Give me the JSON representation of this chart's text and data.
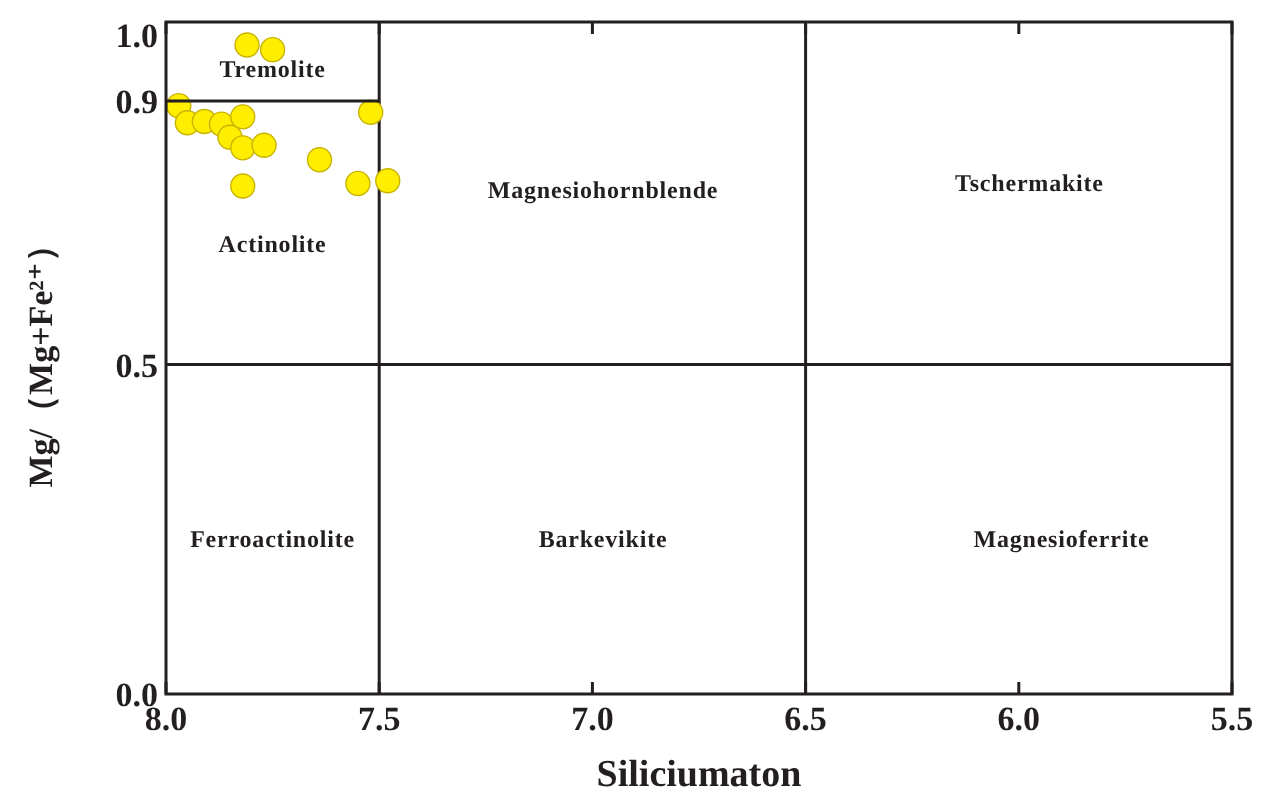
{
  "chart_data": {
    "type": "scatter",
    "xlabel": "Siliciumaton",
    "ylabel": "Mg/（Mg+Fe²⁺）",
    "xlim": [
      8.0,
      5.5
    ],
    "ylim": [
      0,
      1.02
    ],
    "xticks": [
      {
        "value": 8,
        "label": "8.0"
      },
      {
        "value": 7.5,
        "label": "7.5"
      },
      {
        "value": 7,
        "label": "7.0"
      },
      {
        "value": 6.5,
        "label": "6.5"
      },
      {
        "value": 6,
        "label": "6.0"
      },
      {
        "value": 5.5,
        "label": "5.5"
      }
    ],
    "yticks": [
      {
        "value": 0,
        "label": "0.0"
      },
      {
        "value": 0.5,
        "label": "0.5"
      },
      0.9,
      {
        "value": 1,
        "label": "1.0"
      }
    ],
    "grid": false,
    "marker": "circle",
    "series": [
      {
        "color": "#ffee00",
        "x": [
          7.81,
          7.75,
          7.97,
          7.95,
          7.91,
          7.87,
          7.82,
          7.85,
          7.82,
          7.77,
          7.64,
          7.55,
          7.48,
          7.82,
          7.52
        ],
        "values": [
          0.985,
          0.978,
          0.893,
          0.867,
          0.869,
          0.865,
          0.876,
          0.845,
          0.829,
          0.833,
          0.811,
          0.775,
          0.779,
          0.771,
          0.883
        ]
      },
      {
        "type": "line",
        "color": "#231f20",
        "line_style": "solid",
        "marker": "none",
        "x": [
          8.0,
          7.5
        ],
        "values": [
          0.9,
          0.9
        ]
      }
    ],
    "ref_lines": [
      {
        "axis": "x",
        "value": 7.5,
        "color": "#231f20"
      },
      {
        "axis": "x",
        "value": 6.5,
        "color": "#231f20"
      },
      {
        "axis": "y",
        "value": 0.5,
        "color": "#231f20"
      }
    ],
    "annotations": [
      "Tremolite",
      "Actinolite",
      "Magnesiohornblende",
      "Tschermakite",
      "Ferroactinolite",
      "Barkevikite",
      "Magnesioferrite"
    ]
  }
}
